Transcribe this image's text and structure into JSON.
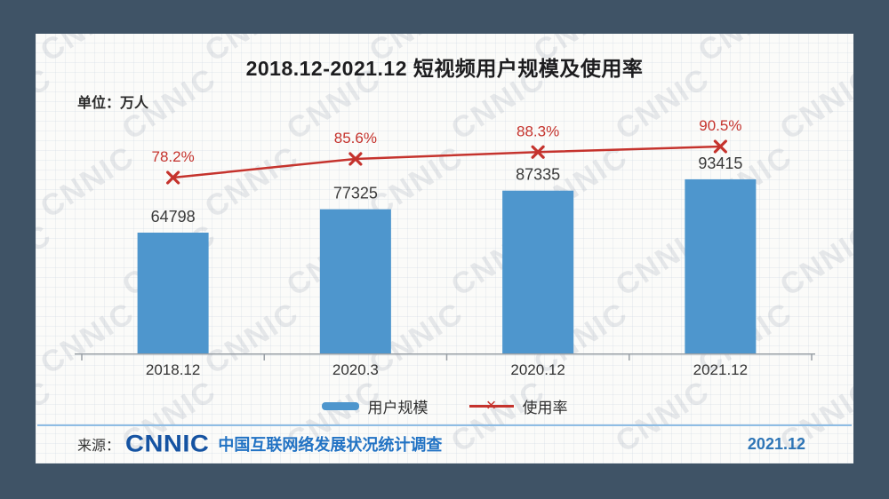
{
  "chart_data": {
    "type": "bar",
    "title": "2018.12-2021.12 短视频用户规模及使用率",
    "unit_label": "单位：万人",
    "categories": [
      "2018.12",
      "2020.3",
      "2020.12",
      "2021.12"
    ],
    "series": [
      {
        "name": "用户规模",
        "type": "bar",
        "values": [
          64798,
          77325,
          87335,
          93415
        ],
        "color": "#4e96cd"
      },
      {
        "name": "使用率",
        "type": "line",
        "values": [
          78.2,
          85.6,
          88.3,
          90.5
        ],
        "value_suffix": "%",
        "marker": "x",
        "color": "#c5332d"
      }
    ],
    "ylim": [
      0,
      100000
    ],
    "y2lim": [
      70,
      95
    ],
    "grid": false,
    "legend_position": "bottom"
  },
  "footer": {
    "source_label": "来源：",
    "logo": "CNNIC",
    "survey_title": "中国互联网络发展状况统计调查",
    "date": "2021.12"
  },
  "watermark": {
    "text": "CNNIC"
  },
  "colors": {
    "frame": "#3f5366",
    "bar": "#4e96cd",
    "line": "#c5332d",
    "axis": "#9aa0a6",
    "value_label": "#3a3a3a",
    "separator": "#8fbde4",
    "survey_blue": "#2273c4",
    "date_blue": "#2e75b6",
    "logo_blue": "#1553a2"
  }
}
